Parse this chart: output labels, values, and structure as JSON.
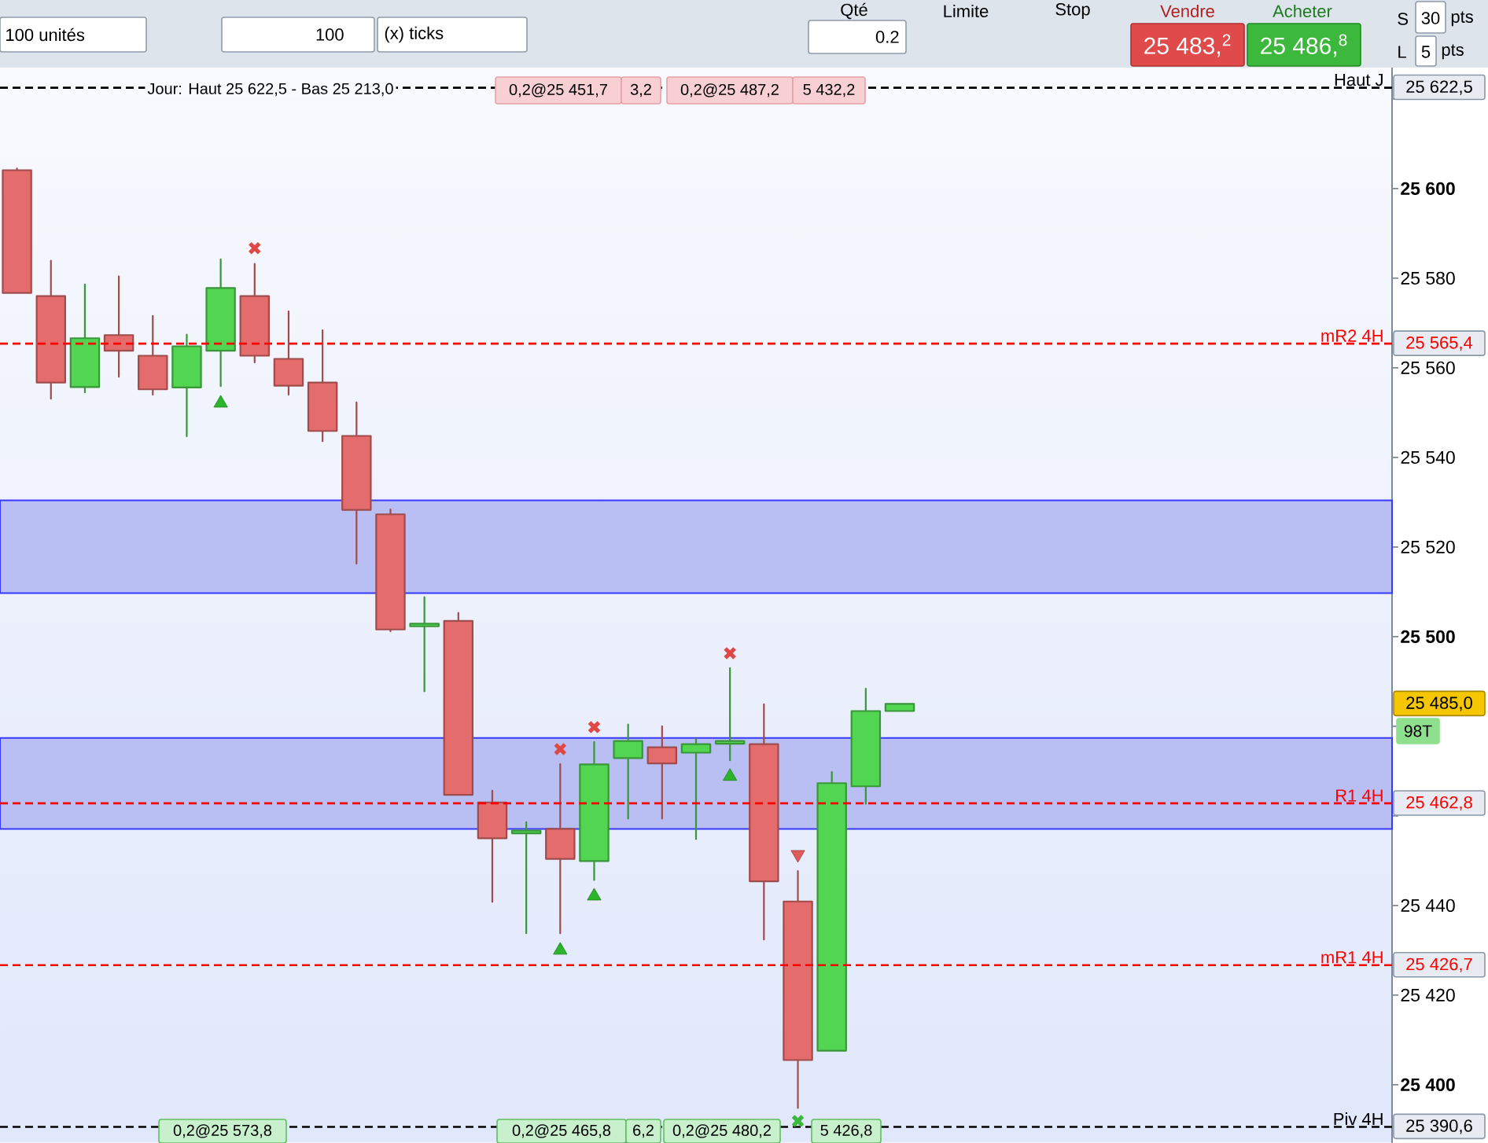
{
  "chart_data": {
    "type": "candlestick",
    "categories": [
      null,
      null,
      null,
      null,
      null,
      null,
      null,
      null,
      null,
      null,
      null,
      null,
      null,
      null,
      null,
      null,
      null,
      null,
      null,
      null,
      null,
      null,
      null,
      null,
      null,
      null,
      null,
      null,
      null,
      null,
      null,
      null,
      null,
      null,
      null,
      null,
      null,
      null,
      null,
      null,
      null
    ],
    "ohlc": [
      [
        25604.1,
        25604.5,
        25576.7,
        25576.7
      ],
      [
        25576.0,
        25583.9,
        25553.1,
        25556.7
      ],
      [
        25555.7,
        25578.6,
        25554.5,
        25566.6
      ],
      [
        25567.3,
        25580.4,
        25558.0,
        25563.8
      ],
      [
        25562.7,
        25571.6,
        25554.0,
        25555.2
      ],
      [
        25555.6,
        25567.4,
        25544.7,
        25564.8
      ],
      [
        25563.8,
        25584.2,
        25555.9,
        25577.8
      ],
      [
        25576.0,
        25583.2,
        25561.2,
        25562.7
      ],
      [
        25562.0,
        25572.6,
        25554.0,
        25556.0
      ],
      [
        25556.7,
        25568.4,
        25543.6,
        25545.9
      ],
      [
        25544.8,
        25552.3,
        25516.3,
        25528.3
      ],
      [
        25527.3,
        25528.4,
        25501.2,
        25501.6
      ],
      [
        25502.3,
        25508.8,
        25487.8,
        25502.9
      ],
      [
        25503.5,
        25505.3,
        25464.7,
        25464.7
      ],
      [
        25463.0,
        25465.6,
        25440.8,
        25455.0
      ],
      [
        25456.1,
        25458.6,
        25433.8,
        25456.7
      ],
      [
        25457.1,
        25471.6,
        25433.8,
        25450.4
      ],
      [
        25449.9,
        25476.5,
        25445.7,
        25471.5
      ],
      [
        25472.9,
        25480.4,
        25459.4,
        25476.7
      ],
      [
        25475.3,
        25480.0,
        25459.4,
        25471.7
      ],
      [
        25474.1,
        25477.2,
        25454.8,
        25476.0
      ],
      [
        25476.1,
        25493.0,
        25472.4,
        25476.7
      ],
      [
        25476.0,
        25484.9,
        25432.4,
        25445.4
      ],
      [
        25440.9,
        25447.7,
        25394.8,
        25405.5
      ],
      [
        25407.6,
        25469.8,
        25407.6,
        25467.3
      ],
      [
        25466.6,
        25488.4,
        25462.7,
        25483.4
      ],
      [
        25483.4,
        25485.0,
        25483.4,
        25485.0
      ],
      null,
      null,
      null,
      null,
      null,
      null,
      null,
      null,
      null,
      null,
      null,
      null,
      null,
      null
    ],
    "colors": [
      "#e46c6c",
      "#e46c6c",
      "#52d652",
      "#e46c6c",
      "#e46c6c",
      "#52d652",
      "#52d652",
      "#e46c6c",
      "#e46c6c",
      "#e46c6c",
      "#e46c6c",
      "#e46c6c",
      "#52d652",
      "#e46c6c",
      "#e46c6c",
      "#52d652",
      "#e46c6c",
      "#52d652",
      "#52d652",
      "#e46c6c",
      "#52d652",
      "#52d652",
      "#e46c6c",
      "#e46c6c",
      "#52d652",
      "#52d652",
      "#52d652",
      null,
      null,
      null,
      null,
      null,
      null,
      null,
      null,
      null,
      null,
      null,
      null,
      null,
      null
    ],
    "series": [
      {
        "type": "scatter",
        "marker": "triangle",
        "color": "#2bb52b",
        "values": [
          null,
          null,
          null,
          null,
          null,
          null,
          25552.1,
          null,
          null,
          null,
          null,
          null,
          null,
          null,
          null,
          null,
          25430.0,
          25442.1,
          null,
          null,
          null,
          25468.8,
          null,
          null,
          null,
          null,
          null,
          null,
          null,
          null,
          null,
          null,
          null,
          null,
          null,
          null,
          null,
          null,
          null,
          null,
          null
        ]
      },
      {
        "type": "scatter",
        "marker": "triangle",
        "color": "#e05a5a",
        "values": [
          null,
          null,
          null,
          null,
          null,
          null,
          null,
          null,
          null,
          null,
          null,
          null,
          null,
          null,
          null,
          null,
          null,
          null,
          null,
          null,
          null,
          null,
          null,
          25451.4,
          null,
          null,
          null,
          null,
          null,
          null,
          null,
          null,
          null,
          null,
          null,
          null,
          null,
          null,
          null,
          null,
          null
        ]
      },
      {
        "type": "scatter",
        "marker": "cross",
        "color": "#e04848",
        "values": [
          null,
          null,
          null,
          null,
          null,
          null,
          null,
          25586.7,
          null,
          null,
          null,
          null,
          null,
          null,
          null,
          null,
          25474.9,
          25479.8,
          null,
          null,
          null,
          25496.3,
          null,
          null,
          null,
          null,
          null,
          null,
          null,
          null,
          null,
          null,
          null,
          null,
          null,
          null,
          null,
          null,
          null,
          null,
          null
        ]
      },
      {
        "type": "scatter",
        "marker": "cross",
        "color": "#3cb83c",
        "values": [
          null,
          null,
          null,
          null,
          null,
          null,
          null,
          null,
          null,
          null,
          null,
          null,
          null,
          null,
          null,
          null,
          null,
          null,
          null,
          null,
          null,
          null,
          null,
          25391.9,
          null,
          null,
          null,
          null,
          null,
          null,
          null,
          null,
          null,
          null,
          null,
          null,
          null,
          null,
          null,
          null,
          null
        ]
      }
    ],
    "ylim": [
      25387,
      25627
    ],
    "yticks": [
      {
        "value": 25620,
        "label": null
      },
      {
        "value": 25600,
        "label": "25 600"
      },
      {
        "value": 25580,
        "label": "25 580"
      },
      {
        "value": 25560,
        "label": "25 560"
      },
      {
        "value": 25540,
        "label": "25 540"
      },
      {
        "value": 25520,
        "label": "25 520"
      },
      {
        "value": 25500,
        "label": "25 500"
      },
      {
        "value": 25480,
        "label": null
      },
      {
        "value": 25460,
        "label": null
      },
      {
        "value": 25440,
        "label": "25 440"
      },
      {
        "value": 25420,
        "label": "25 420"
      },
      {
        "value": 25400,
        "label": "25 400"
      }
    ],
    "bands": [
      {
        "axis": "y",
        "from": 25509.7,
        "to": 25530.4,
        "color": "#b9bff2"
      },
      {
        "axis": "y",
        "from": 25457.1,
        "to": 25477.4,
        "color": "#b9bff2"
      }
    ],
    "ref_lines": [
      {
        "axis": "y",
        "value": 25622.5,
        "label": "Haut J",
        "color": "#000000",
        "line_style": "dashed"
      },
      {
        "axis": "y",
        "value": 25565.4,
        "label": "mR2 4H",
        "color": "#ff0000",
        "line_style": "dashed"
      },
      {
        "axis": "y",
        "value": 25462.8,
        "label": "R1 4H",
        "color": "#ff0000",
        "line_style": "dashed"
      },
      {
        "axis": "y",
        "value": 25426.7,
        "label": "mR1 4H",
        "color": "#ff0000",
        "line_style": "dashed"
      },
      {
        "axis": "y",
        "value": 25390.6,
        "label": "Piv 4H",
        "color": "#000000",
        "line_style": "dashed"
      }
    ],
    "annotations": [
      "100 unités",
      "100",
      "(x) ticks",
      "Qté",
      "0.2",
      "Limite",
      "Stop",
      "Vendre",
      "Acheter",
      "25 483,$^{2}$",
      "25 486,$^{8}$",
      "S",
      "30",
      "pts",
      "L",
      "5",
      "pts",
      "Jour: Haut 25 622,5 - Bas 25 213,0",
      "0,2@25 451,7",
      "3,2",
      "0,2@25 487,2",
      "5 432,2",
      "25 622,5",
      "25 565,4",
      "25 485,0",
      "25 462,8",
      "25 426,7",
      "25 390,6",
      "98T",
      "0,2@25 573,8",
      "0,2@25 465,8",
      "6,2",
      "0,2@25 480,2",
      "5 426,8"
    ]
  }
}
